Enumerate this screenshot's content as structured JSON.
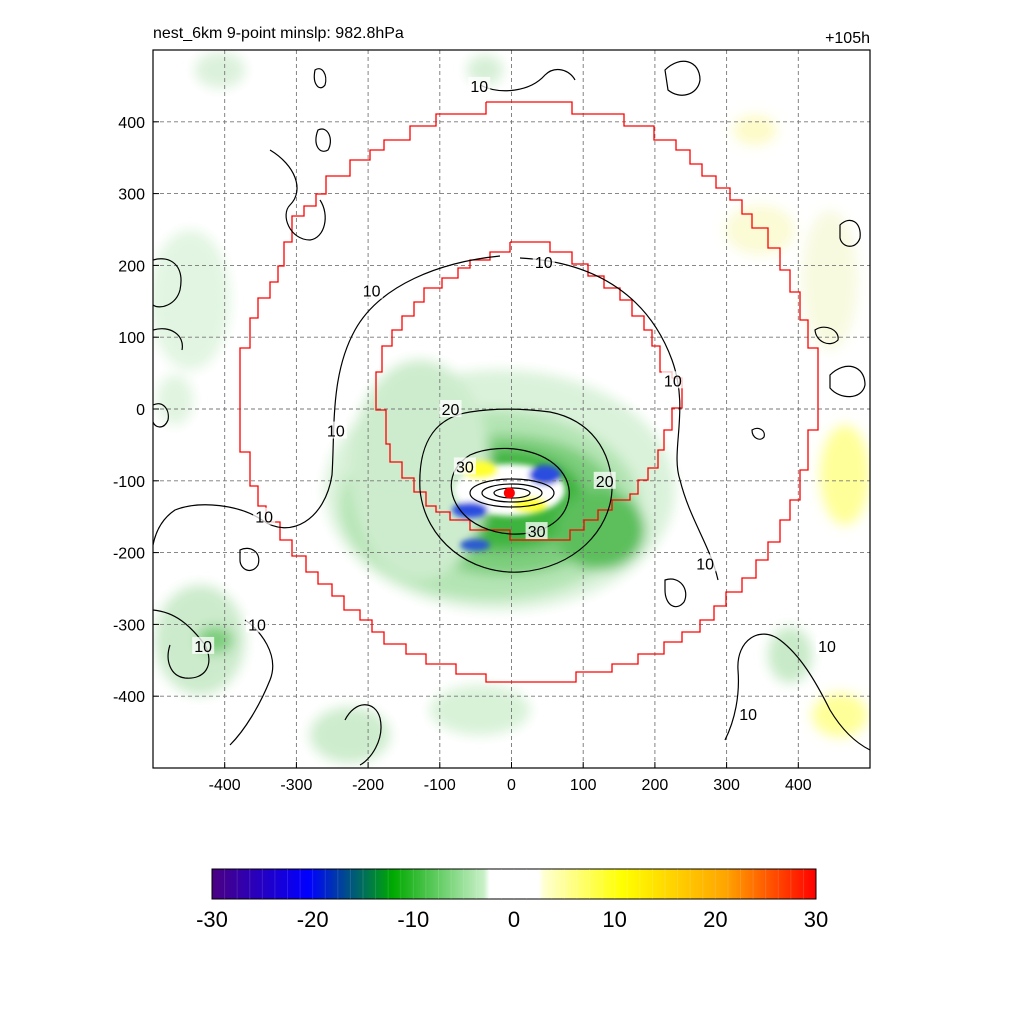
{
  "chart_data": {
    "type": "heatmap",
    "title_left": "nest_6km  9-point minslp: 982.8hPa",
    "title_right": "+105h",
    "xlim": [
      -500,
      500
    ],
    "ylim": [
      -500,
      500
    ],
    "x_ticks": [
      -400,
      -300,
      -200,
      -100,
      0,
      100,
      200,
      300,
      400
    ],
    "y_ticks": [
      400,
      300,
      200,
      100,
      0,
      -100,
      -200,
      -300,
      -400
    ],
    "grid": true,
    "colorbar": {
      "min": -30,
      "max": 30,
      "tick_labels": [
        "-30",
        "-20",
        "-10",
        "0",
        "10",
        "20",
        "30"
      ],
      "colors": [
        "#4b0082",
        "#0000ff",
        "#00aa00",
        "#ffffff",
        "#ffff00",
        "#ffa500",
        "#ff0000"
      ]
    },
    "storm_center": {
      "x": -3,
      "y": -117
    },
    "contour_levels": [
      10,
      20,
      30
    ],
    "contour_labels": [
      {
        "text": "10",
        "x": 45,
        "y": 205
      },
      {
        "text": "10",
        "x": -195,
        "y": 165
      },
      {
        "text": "10",
        "x": 225,
        "y": 40
      },
      {
        "text": "10",
        "x": -245,
        "y": -30
      },
      {
        "text": "10",
        "x": -345,
        "y": -150
      },
      {
        "text": "10",
        "x": 270,
        "y": -215
      },
      {
        "text": "10",
        "x": -355,
        "y": -300
      },
      {
        "text": "10",
        "x": -430,
        "y": -330
      },
      {
        "text": "10",
        "x": 440,
        "y": -330
      },
      {
        "text": "10",
        "x": 330,
        "y": -425
      },
      {
        "text": "10",
        "x": -45,
        "y": 450
      },
      {
        "text": "20",
        "x": -85,
        "y": 0
      },
      {
        "text": "20",
        "x": 130,
        "y": -100
      },
      {
        "text": "30",
        "x": -65,
        "y": -80
      },
      {
        "text": "30",
        "x": 35,
        "y": -170
      }
    ]
  }
}
